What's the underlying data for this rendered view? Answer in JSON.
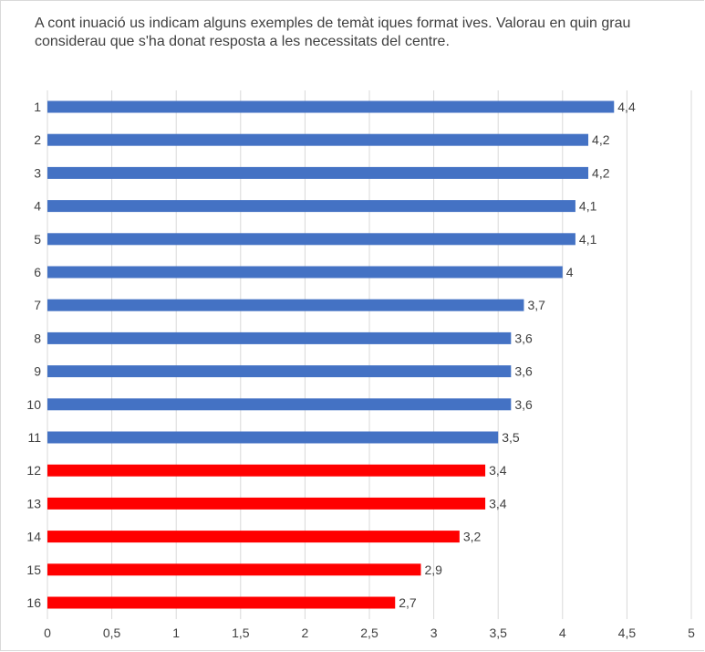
{
  "title_line1": "A cont inuació us indicam alguns exemples de temàt iques format ives. Valorau en quin grau",
  "title_line2": "considerau que s'ha donat resposta a les necessitats del centre.",
  "chart_data": {
    "type": "bar",
    "orientation": "horizontal",
    "categories": [
      "1",
      "2",
      "3",
      "4",
      "5",
      "6",
      "7",
      "8",
      "9",
      "10",
      "11",
      "12",
      "13",
      "14",
      "15",
      "16"
    ],
    "values": [
      4.4,
      4.2,
      4.2,
      4.1,
      4.1,
      4.0,
      3.7,
      3.6,
      3.6,
      3.6,
      3.5,
      3.4,
      3.4,
      3.2,
      2.9,
      2.7
    ],
    "value_labels": [
      "4,4",
      "4,2",
      "4,2",
      "4,1",
      "4,1",
      "4",
      "3,7",
      "3,6",
      "3,6",
      "3,6",
      "3,5",
      "3,4",
      "3,4",
      "3,2",
      "2,9",
      "2,7"
    ],
    "bar_colors": [
      "#4472c4",
      "#4472c4",
      "#4472c4",
      "#4472c4",
      "#4472c4",
      "#4472c4",
      "#4472c4",
      "#4472c4",
      "#4472c4",
      "#4472c4",
      "#4472c4",
      "#ff0000",
      "#ff0000",
      "#ff0000",
      "#ff0000",
      "#ff0000"
    ],
    "x_ticks": [
      "0",
      "0,5",
      "1",
      "1,5",
      "2",
      "2,5",
      "3",
      "3,5",
      "4",
      "4,5",
      "5"
    ],
    "xlim": [
      0,
      5
    ],
    "grid": true,
    "gridline_color": "#d9d9d9"
  }
}
